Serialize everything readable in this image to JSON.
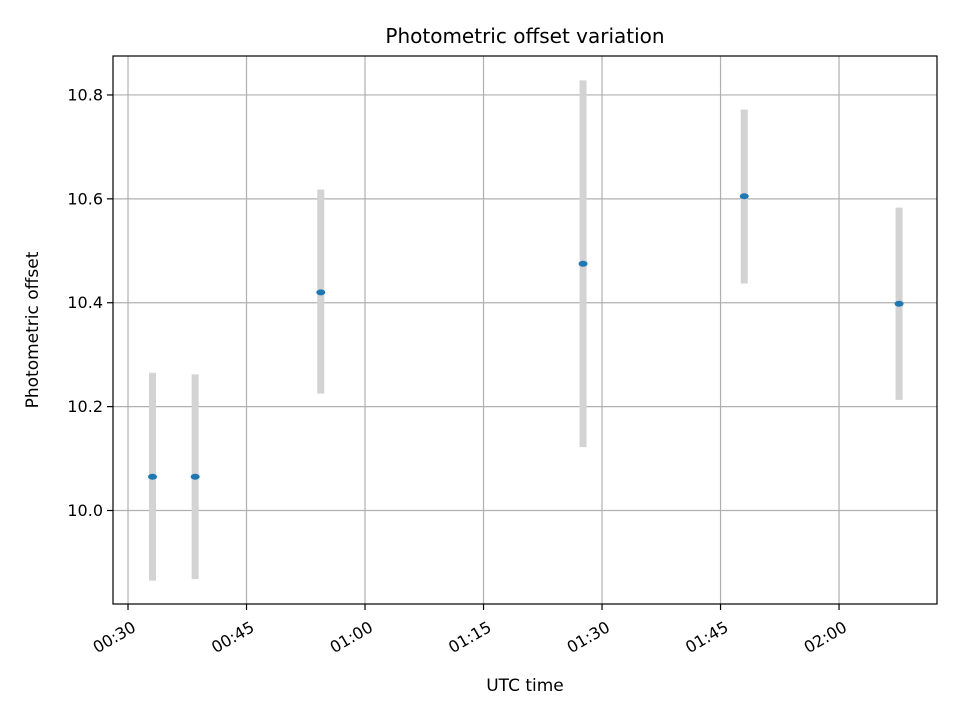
{
  "chart_data": {
    "type": "scatter",
    "title": "Photometric offset variation",
    "xlabel": "UTC time",
    "ylabel": "Photometric offset",
    "x_tick_labels": [
      "00:30",
      "00:45",
      "01:00",
      "01:15",
      "01:30",
      "01:45",
      "02:00"
    ],
    "x_tick_values_min": [
      30,
      45,
      60,
      75,
      90,
      105,
      120
    ],
    "y_tick_labels": [
      "10.0",
      "10.2",
      "10.4",
      "10.6",
      "10.8"
    ],
    "y_tick_values": [
      10.0,
      10.2,
      10.4,
      10.6,
      10.8
    ],
    "xlim_min": [
      28.1,
      132.4
    ],
    "ylim": [
      9.82,
      10.875
    ],
    "grid": true,
    "marker_color": "#1f77b4",
    "errorbar_color": "#d3d3d3",
    "points": [
      {
        "time": "00:33",
        "t_min": 33.1,
        "y": 10.065,
        "yerr_low": 9.865,
        "yerr_high": 10.265
      },
      {
        "time": "00:38",
        "t_min": 38.5,
        "y": 10.065,
        "yerr_low": 9.868,
        "yerr_high": 10.262
      },
      {
        "time": "00:54",
        "t_min": 54.4,
        "y": 10.42,
        "yerr_low": 10.225,
        "yerr_high": 10.618
      },
      {
        "time": "01:27",
        "t_min": 87.6,
        "y": 10.475,
        "yerr_low": 10.122,
        "yerr_high": 10.828
      },
      {
        "time": "01:48",
        "t_min": 108.0,
        "y": 10.605,
        "yerr_low": 10.437,
        "yerr_high": 10.772
      },
      {
        "time": "02:07",
        "t_min": 127.6,
        "y": 10.398,
        "yerr_low": 10.213,
        "yerr_high": 10.583
      }
    ]
  }
}
